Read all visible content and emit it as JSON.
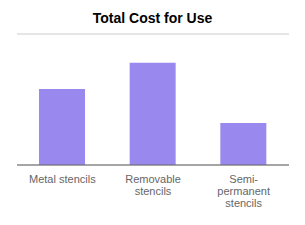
{
  "chart_data": {
    "type": "bar",
    "title": "Total Cost for Use",
    "categories": [
      "Metal stencils",
      "Removable\nstencils",
      "Semi-\npermanent\nstencils"
    ],
    "values": [
      58,
      78,
      32
    ],
    "color": "#9988ee",
    "ylim": [
      0,
      100
    ],
    "yticks": [
      0,
      16.666666666666668,
      33.333333333333336,
      50,
      66.66666666666667,
      83.33333333333334,
      100
    ],
    "grid": true,
    "tick_labels": "x"
  }
}
